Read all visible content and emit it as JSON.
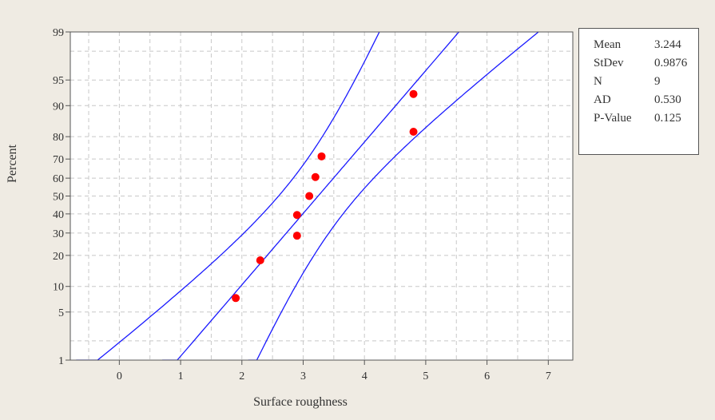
{
  "chart_data": {
    "type": "scatter",
    "subtype": "normal-probability-plot",
    "xlabel": "Surface roughness",
    "ylabel": "Percent",
    "xlim": [
      -0.8,
      7.4
    ],
    "x_ticks": [
      0,
      1,
      2,
      3,
      4,
      5,
      6,
      7
    ],
    "y_ticks": [
      1,
      5,
      10,
      20,
      30,
      40,
      50,
      60,
      70,
      80,
      90,
      95,
      99
    ],
    "y_scale": "normal-probability",
    "grid": true,
    "points": [
      {
        "x": 1.9,
        "y": 7.4
      },
      {
        "x": 2.3,
        "y": 18.1
      },
      {
        "x": 2.9,
        "y": 28.7
      },
      {
        "x": 2.9,
        "y": 39.4
      },
      {
        "x": 3.1,
        "y": 50.0
      },
      {
        "x": 3.2,
        "y": 60.6
      },
      {
        "x": 3.3,
        "y": 71.3
      },
      {
        "x": 4.8,
        "y": 81.9
      },
      {
        "x": 4.8,
        "y": 92.6
      }
    ],
    "fit_line": {
      "mean": 3.244,
      "stdev": 0.9876
    },
    "confidence_band": true,
    "colors": {
      "points": "#ff0000",
      "lines": "#1a1aff",
      "grid": "#c8c8c8"
    }
  },
  "stats": [
    {
      "label": "Mean",
      "value": "3.244"
    },
    {
      "label": "StDev",
      "value": "0.9876"
    },
    {
      "label": "N",
      "value": "9"
    },
    {
      "label": "AD",
      "value": "0.530"
    },
    {
      "label": "P-Value",
      "value": "0.125"
    }
  ]
}
